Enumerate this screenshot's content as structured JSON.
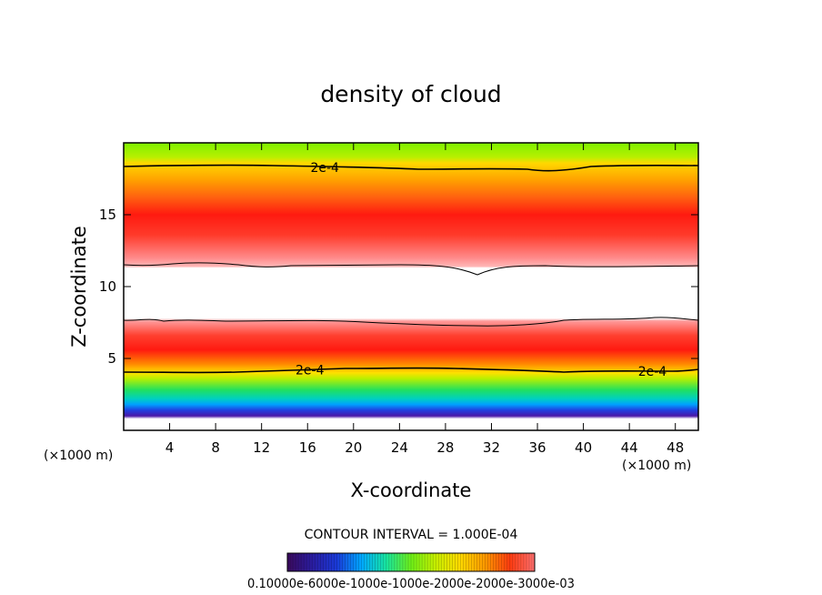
{
  "chart_data": {
    "type": "heatmap",
    "title": "density of cloud",
    "xlabel": "X-coordinate",
    "ylabel": "Z-coordinate",
    "x_unit": "(×1000 m)",
    "y_unit": "(×1000 m)",
    "xlim": [
      0,
      50
    ],
    "ylim": [
      0,
      20
    ],
    "x_ticks": [
      4,
      8,
      12,
      16,
      20,
      24,
      28,
      32,
      36,
      40,
      44,
      48
    ],
    "y_ticks": [
      5,
      10,
      15
    ],
    "contour_interval_text": "CONTOUR INTERVAL = 1.000E-04",
    "contour_labels": [
      {
        "text": "2e-4",
        "x": 17.5,
        "z": 18.3
      },
      {
        "text": "2e-4",
        "x": 16.2,
        "z": 4.2
      },
      {
        "text": "2e-4",
        "x": 46.0,
        "z": 4.1
      }
    ],
    "upper_layer": {
      "bottom_z": 11.4,
      "peak_z": 14.3,
      "top_contour_z": 18.2
    },
    "lower_layer": {
      "top_z": 7.5,
      "peak_z": 5.8,
      "contour_z": 4.1,
      "bottom_z": 1.5
    },
    "colorbar": {
      "min": 0.0001,
      "max": 0.0003,
      "labels_text": "0.10000e-6000e-1000e-1000e-2000e-2000e-3000e-03",
      "colors": [
        "#3a0a5c",
        "#2a1ca0",
        "#1a3ad8",
        "#00a8ff",
        "#18e6a0",
        "#6ef018",
        "#c8f000",
        "#ffd800",
        "#ff9800",
        "#ff3c10",
        "#ff7070"
      ]
    }
  }
}
